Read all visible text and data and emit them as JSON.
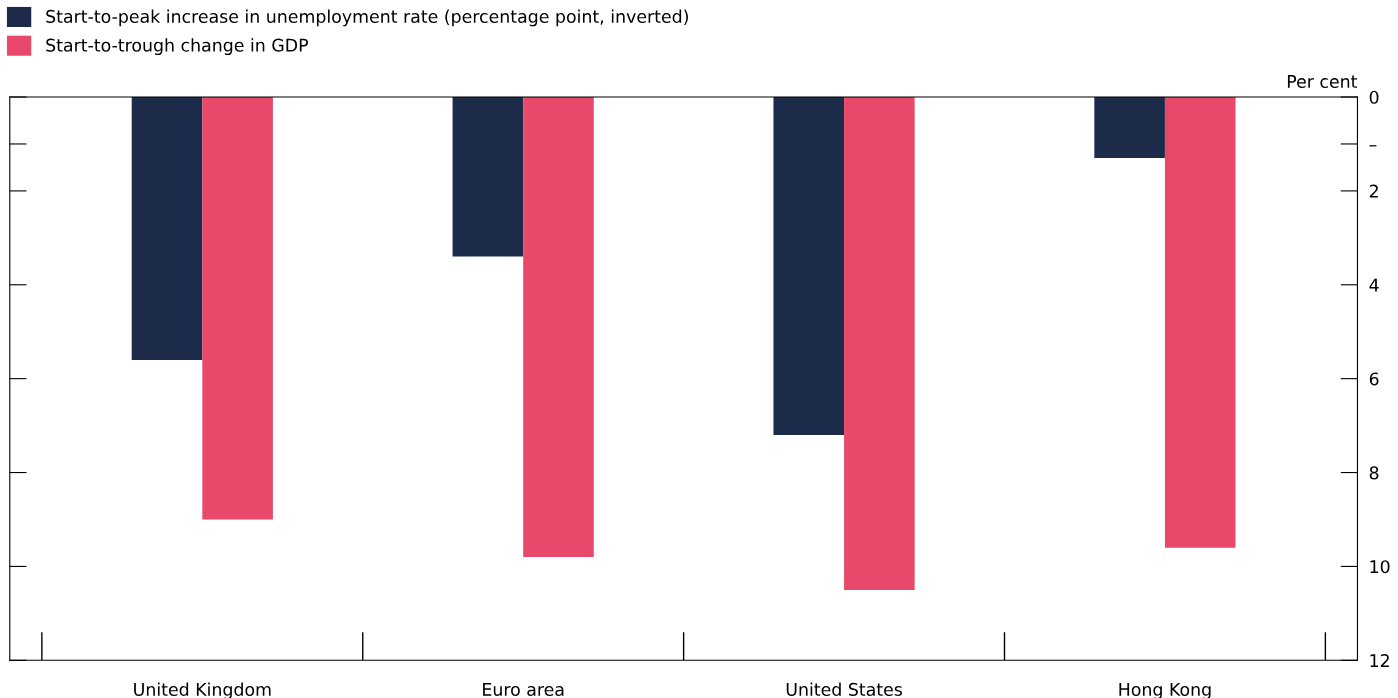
{
  "chart_data": {
    "type": "bar",
    "categories": [
      "United Kingdom",
      "Euro area",
      "United States",
      "Hong Kong"
    ],
    "series": [
      {
        "name": "Start-to-peak increase in unemployment rate (percentage point, inverted)",
        "color": "#1c2b4a",
        "values": [
          5.6,
          3.4,
          7.2,
          1.3
        ]
      },
      {
        "name": "Start-to-trough change in GDP",
        "color": "#e8496a",
        "values": [
          9.0,
          9.8,
          10.5,
          9.6
        ]
      }
    ],
    "ylabel": "Per cent",
    "ylim": [
      12,
      0
    ],
    "yticks": [
      0,
      {
        "value": 1,
        "label": "–"
      },
      2,
      4,
      6,
      8,
      10,
      12
    ],
    "legend": "top left",
    "grid": false
  }
}
